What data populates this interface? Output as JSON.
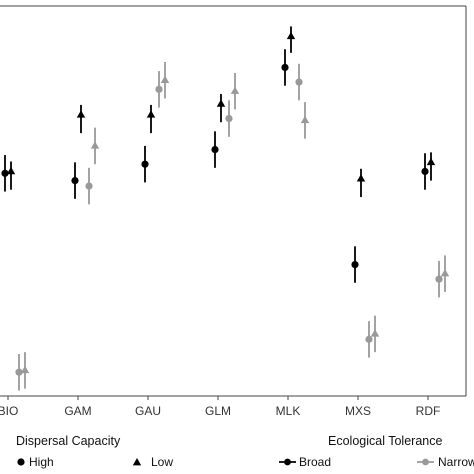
{
  "chart_data": {
    "type": "scatter",
    "categories": [
      "BIO",
      "GAM",
      "GAU",
      "GLM",
      "MLK",
      "MXS",
      "RDF"
    ],
    "ylim": [
      0,
      100
    ],
    "grid": false,
    "legend_position": "bottom",
    "colors": {
      "broad": "#000000",
      "narrow": "#999999",
      "axis": "#444444"
    },
    "series": [
      {
        "dispersal": "High",
        "tolerance": "Broad",
        "marker": "circle",
        "values": [
          58,
          56,
          60.5,
          64.5,
          87,
          33,
          58.5
        ],
        "lower": [
          53,
          51,
          55.5,
          59.5,
          82,
          28,
          53.5
        ],
        "upper": [
          63,
          61,
          65.5,
          69.5,
          92,
          38,
          63.5
        ]
      },
      {
        "dispersal": "Low",
        "tolerance": "Broad",
        "marker": "triangle",
        "values": [
          58.5,
          74,
          74,
          77,
          95.5,
          56.5,
          61
        ],
        "lower": [
          53.5,
          69,
          69,
          72,
          91,
          51.5,
          56
        ]
      },
      {
        "dispersal": "High",
        "tolerance": "Narrow",
        "marker": "circle",
        "values": [
          3.5,
          54.5,
          81,
          73,
          83,
          12.5,
          29
        ],
        "lower": [
          -1.5,
          49.5,
          76,
          68,
          78,
          7.5,
          24
        ],
        "upper": [
          8.5,
          59.5,
          86,
          78,
          88,
          17.5,
          34
        ]
      },
      {
        "dispersal": "Low",
        "tolerance": "Narrow",
        "marker": "triangle",
        "values": [
          4,
          65.5,
          83.5,
          80.5,
          72.5,
          14,
          30.5
        ],
        "lower": [
          -1,
          60.5,
          78.5,
          75.5,
          67.5,
          9,
          25.5
        ],
        "upper": [
          9,
          70.5,
          88.5,
          85.5,
          77.5,
          19,
          35.5
        ]
      }
    ]
  },
  "legend": {
    "dispersal": {
      "title": "Dispersal Capacity",
      "items": [
        {
          "label": "High",
          "marker": "circle"
        },
        {
          "label": "Low",
          "marker": "triangle"
        }
      ]
    },
    "tolerance": {
      "title": "Ecological Tolerance",
      "items": [
        {
          "label": "Broad",
          "color": "#000000"
        },
        {
          "label": "Narrow",
          "color": "#999999"
        }
      ]
    }
  }
}
